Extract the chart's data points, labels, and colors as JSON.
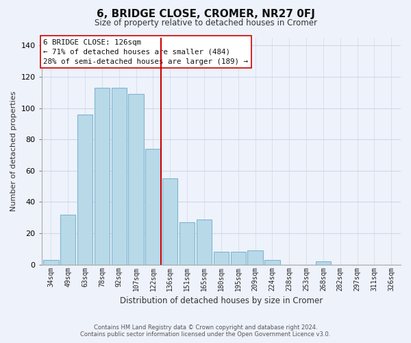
{
  "title": "6, BRIDGE CLOSE, CROMER, NR27 0FJ",
  "subtitle": "Size of property relative to detached houses in Cromer",
  "xlabel": "Distribution of detached houses by size in Cromer",
  "ylabel": "Number of detached properties",
  "footer_line1": "Contains HM Land Registry data © Crown copyright and database right 2024.",
  "footer_line2": "Contains public sector information licensed under the Open Government Licence v3.0.",
  "bar_labels": [
    "34sqm",
    "49sqm",
    "63sqm",
    "78sqm",
    "92sqm",
    "107sqm",
    "122sqm",
    "136sqm",
    "151sqm",
    "165sqm",
    "180sqm",
    "195sqm",
    "209sqm",
    "224sqm",
    "238sqm",
    "253sqm",
    "268sqm",
    "282sqm",
    "297sqm",
    "311sqm",
    "326sqm"
  ],
  "bar_values": [
    3,
    32,
    96,
    113,
    113,
    109,
    74,
    55,
    27,
    29,
    8,
    8,
    9,
    3,
    0,
    0,
    2,
    0,
    0,
    0,
    0
  ],
  "bar_color": "#b8d9e8",
  "bar_edge_color": "#7fb5ce",
  "vline_color": "#cc0000",
  "annotation_title": "6 BRIDGE CLOSE: 126sqm",
  "annotation_line1": "← 71% of detached houses are smaller (484)",
  "annotation_line2": "28% of semi-detached houses are larger (189) →",
  "annotation_box_color": "#ffffff",
  "annotation_box_edge": "#cc0000",
  "ylim": [
    0,
    145
  ],
  "yticks": [
    0,
    20,
    40,
    60,
    80,
    100,
    120,
    140
  ],
  "grid_color": "#d0d8e8",
  "background_color": "#eef2fb",
  "plot_bg_color": "#eef2fb",
  "figsize": [
    6.0,
    5.0
  ],
  "dpi": 100
}
